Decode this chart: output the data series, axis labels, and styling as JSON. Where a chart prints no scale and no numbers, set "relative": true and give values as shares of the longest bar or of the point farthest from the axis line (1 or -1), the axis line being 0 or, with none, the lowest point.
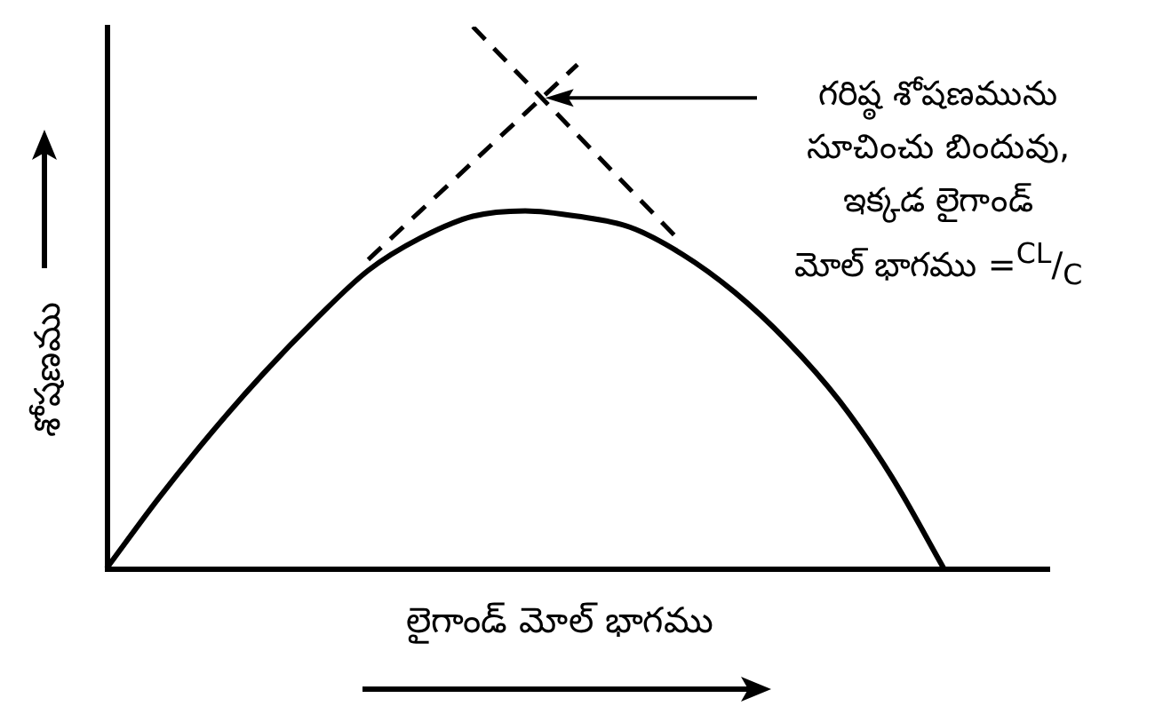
{
  "chart_data": {
    "type": "line",
    "relative": true,
    "xlabel": "లైగాండ్ మోల్ భాగము",
    "ylabel": "శోషణము",
    "categories": [
      null,
      null,
      null,
      null,
      null,
      null,
      null,
      null,
      null,
      null,
      null,
      null,
      null,
      null,
      null,
      null,
      null,
      null,
      null
    ],
    "series": [
      {
        "color": "#000000",
        "line_style": "solid",
        "values": [
          0,
          0.13,
          0.25,
          0.36,
          0.46,
          0.55,
          0.61,
          0.65,
          0.66,
          0.65,
          0.63,
          0.58,
          0.51,
          0.42,
          0.31,
          0.17,
          0,
          null,
          null
        ]
      },
      {
        "color": "#000000",
        "line_style": "dashed",
        "values": [
          null,
          null,
          null,
          null,
          null,
          0.57,
          0.66,
          0.75,
          0.84,
          0.93,
          null,
          null,
          null,
          null,
          null,
          null,
          null,
          null,
          null
        ]
      },
      {
        "color": "#000000",
        "line_style": "dashed",
        "values": [
          null,
          null,
          null,
          null,
          null,
          null,
          null,
          1,
          0.9,
          0.8,
          0.7,
          0.6,
          null,
          null,
          null,
          null,
          null,
          null,
          null
        ]
      }
    ],
    "annotations": [
      "గరిష్ఠ శోషణమును\nసూచించు బిందువు,\nఇక్కడ లైగాండ్\nమోల్ భాగము =$^{CL}$/$_{C}$"
    ],
    "marker": "none",
    "grid": false,
    "legend": false
  }
}
